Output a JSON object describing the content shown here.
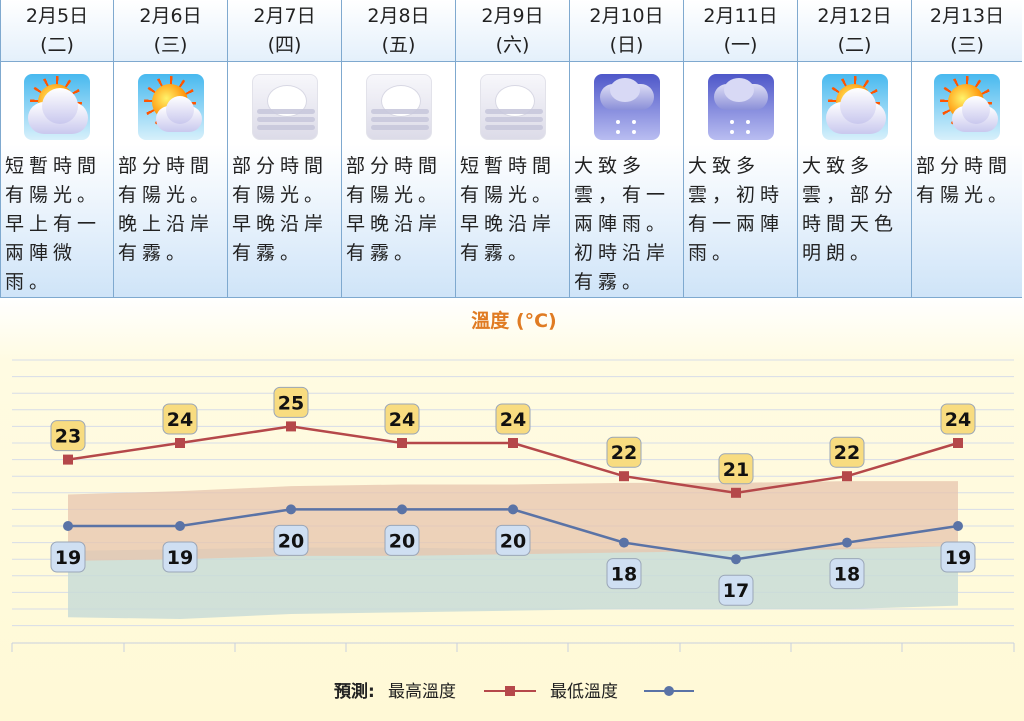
{
  "days": [
    {
      "date": "2月5日",
      "weekday": "(二)",
      "icon": "sunny-periods-icon",
      "desc": "短暫時間有陽光。早上有一兩陣微雨。"
    },
    {
      "date": "2月6日",
      "weekday": "(三)",
      "icon": "sunny-intervals-icon",
      "desc": "部分時間有陽光。晚上沿岸有霧。"
    },
    {
      "date": "2月7日",
      "weekday": "(四)",
      "icon": "mist-icon",
      "desc": "部分時間有陽光。早晚沿岸有霧。"
    },
    {
      "date": "2月8日",
      "weekday": "(五)",
      "icon": "mist-icon",
      "desc": "部分時間有陽光。早晚沿岸有霧。"
    },
    {
      "date": "2月9日",
      "weekday": "(六)",
      "icon": "mist-icon",
      "desc": "短暫時間有陽光。早晚沿岸有霧。"
    },
    {
      "date": "2月10日",
      "weekday": "(日)",
      "icon": "light-rain-icon",
      "desc": "大致多雲，有一兩陣雨。初時沿岸有霧。"
    },
    {
      "date": "2月11日",
      "weekday": "(一)",
      "icon": "light-rain-icon",
      "desc": "大致多雲，初時有一兩陣雨。"
    },
    {
      "date": "2月12日",
      "weekday": "(二)",
      "icon": "sunny-periods-icon",
      "desc": "大致多雲，部分時間天色明朗。"
    },
    {
      "date": "2月13日",
      "weekday": "(三)",
      "icon": "sunny-intervals-icon",
      "desc": "部分時間有陽光。"
    }
  ],
  "chart_data": {
    "type": "line",
    "title": "溫度 (°C)",
    "categories": [
      "2月5日",
      "2月6日",
      "2月7日",
      "2月8日",
      "2月9日",
      "2月10日",
      "2月11日",
      "2月12日",
      "2月13日"
    ],
    "series": [
      {
        "name": "最高溫度",
        "values": [
          23,
          24,
          25,
          24,
          24,
          22,
          21,
          22,
          24
        ],
        "color": "#b5484a"
      },
      {
        "name": "最低溫度",
        "values": [
          19,
          19,
          20,
          20,
          20,
          18,
          17,
          18,
          19
        ],
        "color": "#5a73a6"
      }
    ],
    "band_high_upper": [
      20.9,
      21.1,
      21.4,
      21.5,
      21.5,
      21.6,
      21.6,
      21.7,
      21.7
    ],
    "band_high_lower": [
      16.9,
      17,
      17.2,
      17.2,
      17.3,
      17.4,
      17.5,
      17.6,
      17.8
    ],
    "band_low_upper": [
      17.5,
      17.6,
      17.7,
      17.7,
      17.6,
      17.6,
      17.6,
      17.7,
      17.8
    ],
    "band_low_lower": [
      13.5,
      13.4,
      13.7,
      13.8,
      13.9,
      14,
      14,
      14,
      14.2
    ],
    "ylim": [
      12.5,
      30
    ],
    "grid": true,
    "legend_position": "bottom",
    "legend_label": "預測:",
    "colors": {
      "title": "#e07b22",
      "background": "#fffbe0",
      "label_high_bg": "#f8dc80",
      "label_low_bg": "#cfdff2",
      "band_high": "#e7c4ae",
      "band_low": "#c9dcd7"
    }
  }
}
